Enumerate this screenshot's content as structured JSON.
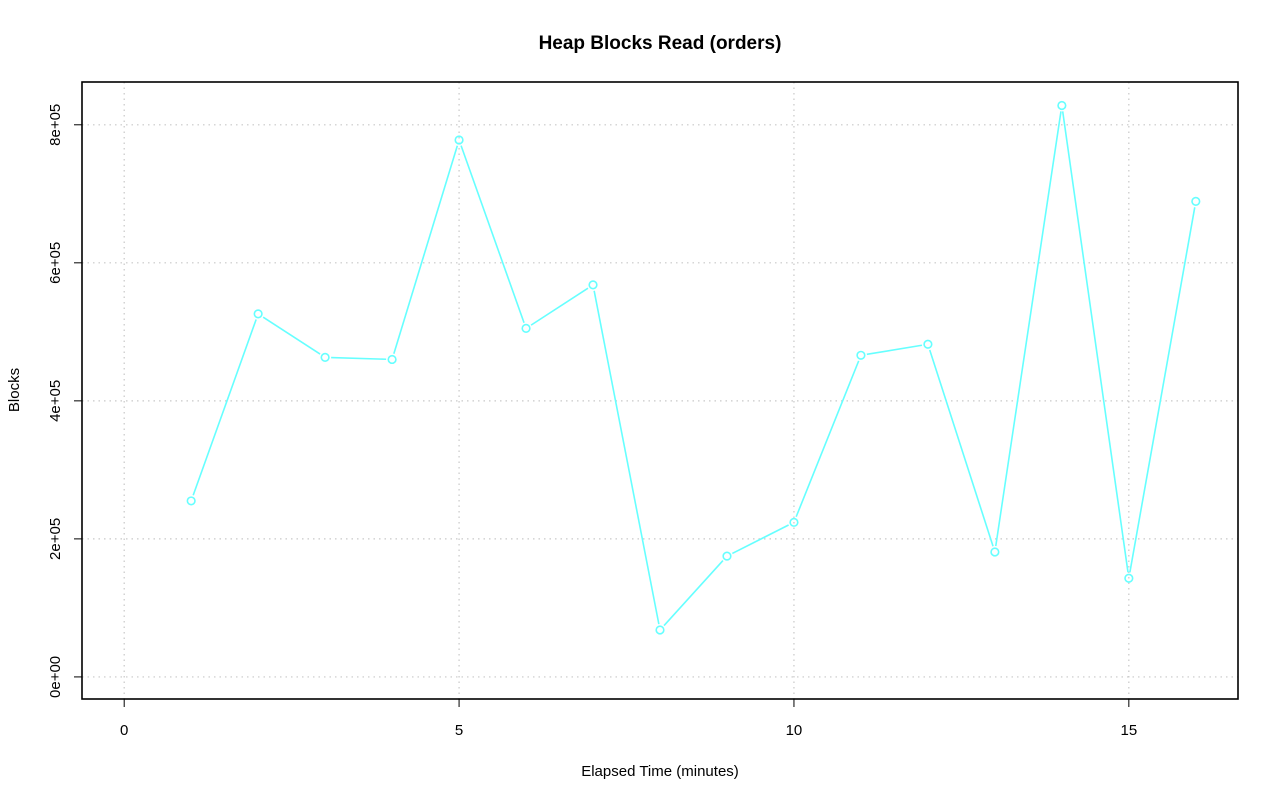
{
  "chart_data": {
    "type": "line",
    "title": "Heap Blocks Read (orders)",
    "xlabel": "Elapsed Time (minutes)",
    "ylabel": "Blocks",
    "xlim": [
      -0.63,
      16.63
    ],
    "ylim": [
      -32000,
      862000
    ],
    "x_ticks": [
      0,
      5,
      10,
      15
    ],
    "x_tick_labels": [
      "0",
      "5",
      "10",
      "15"
    ],
    "y_ticks": [
      0,
      200000,
      400000,
      600000,
      800000
    ],
    "y_tick_labels": [
      "0e+00",
      "2e+05",
      "4e+05",
      "6e+05",
      "8e+05"
    ],
    "grid": true,
    "legend": "none",
    "series": [
      {
        "color": "#66ffff",
        "x": [
          1,
          2,
          3,
          4,
          5,
          6,
          7,
          8,
          9,
          10,
          11,
          12,
          13,
          14,
          15,
          16
        ],
        "values": [
          255000,
          526000,
          463000,
          460000,
          778000,
          505000,
          568000,
          68000,
          175000,
          224000,
          466000,
          482000,
          181000,
          828000,
          143000,
          689000
        ]
      }
    ]
  }
}
